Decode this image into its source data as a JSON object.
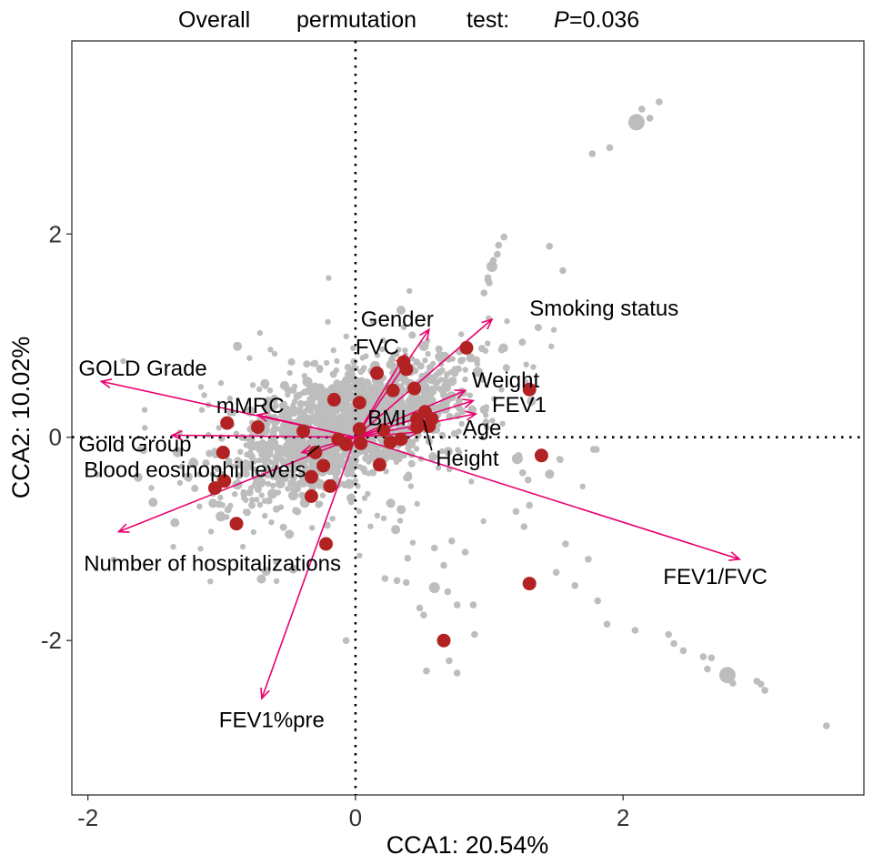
{
  "chart_data": {
    "type": "scatter",
    "title": {
      "words": [
        "Overall",
        "permutation",
        "test:"
      ],
      "p_symbol": "P",
      "p_value": "=0.036"
    },
    "xlabel": "CCA1: 20.54%",
    "ylabel": "CCA2: 10.02%",
    "xlim": [
      -2.12,
      3.8
    ],
    "ylim": [
      -3.52,
      3.9
    ],
    "x_ticks": [
      -2,
      0,
      2
    ],
    "x_tick_labels": [
      "-2",
      "0",
      "2"
    ],
    "y_ticks": [
      -2,
      0,
      2
    ],
    "y_tick_labels": [
      "-2",
      "0",
      "2"
    ],
    "reference_lines": {
      "x": 0,
      "y": 0,
      "style": "dotted"
    },
    "colors": {
      "background_points": "#bdbdbd",
      "highlight_points": "#b22222",
      "arrows": "#e8006e",
      "leader_lines": "#000000"
    },
    "arrows": [
      {
        "label": "Smoking status",
        "x": 1.02,
        "y": 1.16,
        "label_x": 1.3,
        "label_y": 1.27
      },
      {
        "label": "Gender",
        "x": 0.55,
        "y": 1.06,
        "label_x": 0.04,
        "label_y": 1.16
      },
      {
        "label": "FVC",
        "x": 0.37,
        "y": 0.81,
        "label_x": 0.0,
        "label_y": 0.89
      },
      {
        "label": "Weight",
        "x": 0.82,
        "y": 0.46,
        "label_x": 0.87,
        "label_y": 0.56
      },
      {
        "label": "FEV1",
        "x": 0.88,
        "y": 0.36,
        "label_x": 1.02,
        "label_y": 0.32
      },
      {
        "label": "BMI",
        "x": 0.5,
        "y": 0.2,
        "label_x": 0.09,
        "label_y": 0.19
      },
      {
        "label": "Age",
        "x": 0.9,
        "y": 0.23,
        "label_x": 0.8,
        "label_y": 0.09
      },
      {
        "label": "Height",
        "x": 0.47,
        "y": 0.05,
        "label_x": 0.6,
        "label_y": -0.21
      },
      {
        "label": "FEV1/FVC",
        "x": 2.87,
        "y": -1.2,
        "label_x": 2.3,
        "label_y": -1.37
      },
      {
        "label": "GOLD Grade",
        "x": -1.9,
        "y": 0.55,
        "label_x": -2.07,
        "label_y": 0.68
      },
      {
        "label": "mMRC",
        "x": -0.73,
        "y": 0.22,
        "label_x": -1.04,
        "label_y": 0.31
      },
      {
        "label": "Gold Group",
        "x": -1.37,
        "y": 0.02,
        "label_x": -2.07,
        "label_y": -0.07
      },
      {
        "label": "Blood eosinophil levels",
        "x": -0.4,
        "y": -0.15,
        "label_x": -2.03,
        "label_y": -0.32
      },
      {
        "label": "Number of hospitalizations",
        "x": -1.77,
        "y": -0.93,
        "label_x": -2.03,
        "label_y": -1.24
      },
      {
        "label": "FEV1%pre",
        "x": -0.7,
        "y": -2.57,
        "label_x": -1.02,
        "label_y": -2.78
      }
    ],
    "leader_lines": [
      {
        "from": [
          -0.27,
          -0.08
        ],
        "to": [
          -0.36,
          -0.18
        ]
      },
      {
        "from": [
          0.51,
          0.17
        ],
        "to": [
          0.57,
          -0.13
        ]
      },
      {
        "from": [
          0.17,
          0.05
        ],
        "to": [
          0.19,
          0.13
        ]
      }
    ],
    "highlight_points": [
      [
        0.83,
        0.88
      ],
      [
        1.3,
        0.47
      ],
      [
        1.39,
        -0.18
      ],
      [
        1.3,
        -1.44
      ],
      [
        0.66,
        -2.0
      ],
      [
        0.16,
        0.63
      ],
      [
        0.28,
        0.46
      ],
      [
        0.36,
        0.74
      ],
      [
        0.38,
        0.67
      ],
      [
        0.44,
        0.48
      ],
      [
        -0.16,
        0.37
      ],
      [
        0.03,
        0.34
      ],
      [
        0.52,
        0.25
      ],
      [
        0.46,
        0.18
      ],
      [
        0.47,
        0.14
      ],
      [
        0.57,
        0.18
      ],
      [
        0.46,
        0.1
      ],
      [
        0.55,
        0.11
      ],
      [
        0.03,
        0.08
      ],
      [
        0.21,
        0.07
      ],
      [
        0.34,
        -0.02
      ],
      [
        0.26,
        -0.05
      ],
      [
        0.04,
        -0.06
      ],
      [
        -0.07,
        -0.07
      ],
      [
        -0.13,
        -0.02
      ],
      [
        -0.39,
        0.06
      ],
      [
        -0.73,
        0.1
      ],
      [
        -0.96,
        0.14
      ],
      [
        -0.99,
        -0.15
      ],
      [
        -0.98,
        -0.43
      ],
      [
        -1.05,
        -0.5
      ],
      [
        -0.89,
        -0.85
      ],
      [
        -0.3,
        -0.15
      ],
      [
        -0.24,
        -0.28
      ],
      [
        -0.33,
        -0.39
      ],
      [
        -0.33,
        -0.58
      ],
      [
        -0.19,
        -0.48
      ],
      [
        0.18,
        -0.27
      ],
      [
        -0.22,
        -1.05
      ]
    ],
    "outlier_points": [
      [
        2.27,
        3.3
      ],
      [
        2.14,
        3.23
      ],
      [
        2.1,
        3.1
      ],
      [
        2.2,
        3.14
      ],
      [
        1.9,
        2.85
      ],
      [
        1.77,
        2.79
      ],
      [
        1.11,
        1.97
      ],
      [
        1.07,
        1.89
      ],
      [
        1.06,
        1.8
      ],
      [
        1.03,
        1.74
      ],
      [
        1.02,
        1.68
      ],
      [
        0.99,
        1.57
      ],
      [
        0.99,
        1.55
      ],
      [
        1.45,
        1.88
      ],
      [
        1.55,
        1.64
      ],
      [
        1.0,
        1.52
      ],
      [
        0.96,
        1.42
      ],
      [
        1.78,
        -0.12
      ],
      [
        1.8,
        -0.12
      ],
      [
        1.22,
        -0.18
      ],
      [
        1.21,
        -0.21
      ],
      [
        1.53,
        -0.22
      ],
      [
        1.25,
        -0.35
      ],
      [
        1.29,
        -0.42
      ],
      [
        1.3,
        -0.67
      ],
      [
        1.2,
        -0.73
      ],
      [
        1.26,
        -0.88
      ],
      [
        1.57,
        -1.05
      ],
      [
        1.74,
        -1.2
      ],
      [
        1.5,
        -1.33
      ],
      [
        1.64,
        -1.46
      ],
      [
        1.81,
        -1.61
      ],
      [
        1.88,
        -1.84
      ],
      [
        2.09,
        -1.9
      ],
      [
        2.34,
        -1.94
      ],
      [
        2.38,
        -2.03
      ],
      [
        2.45,
        -2.1
      ],
      [
        2.6,
        -2.16
      ],
      [
        2.66,
        -2.17
      ],
      [
        2.63,
        -2.28
      ],
      [
        2.78,
        -2.34
      ],
      [
        2.82,
        -2.42
      ],
      [
        3.0,
        -2.4
      ],
      [
        3.03,
        -2.43
      ],
      [
        3.06,
        -2.49
      ],
      [
        3.52,
        -2.84
      ],
      [
        0.59,
        -1.48
      ],
      [
        0.69,
        -1.52
      ],
      [
        0.76,
        -1.65
      ],
      [
        0.88,
        -1.65
      ],
      [
        0.48,
        -1.68
      ],
      [
        0.51,
        -1.75
      ],
      [
        0.89,
        -1.94
      ],
      [
        0.7,
        -2.2
      ],
      [
        0.76,
        -2.32
      ],
      [
        0.53,
        -2.3
      ],
      [
        -0.07,
        -2.0
      ],
      [
        0.72,
        -1.02
      ],
      [
        0.82,
        -1.13
      ],
      [
        0.59,
        -1.09
      ],
      [
        0.39,
        -1.19
      ],
      [
        0.66,
        -1.26
      ],
      [
        0.22,
        -1.39
      ],
      [
        0.31,
        -1.41
      ],
      [
        0.38,
        -1.43
      ]
    ]
  }
}
